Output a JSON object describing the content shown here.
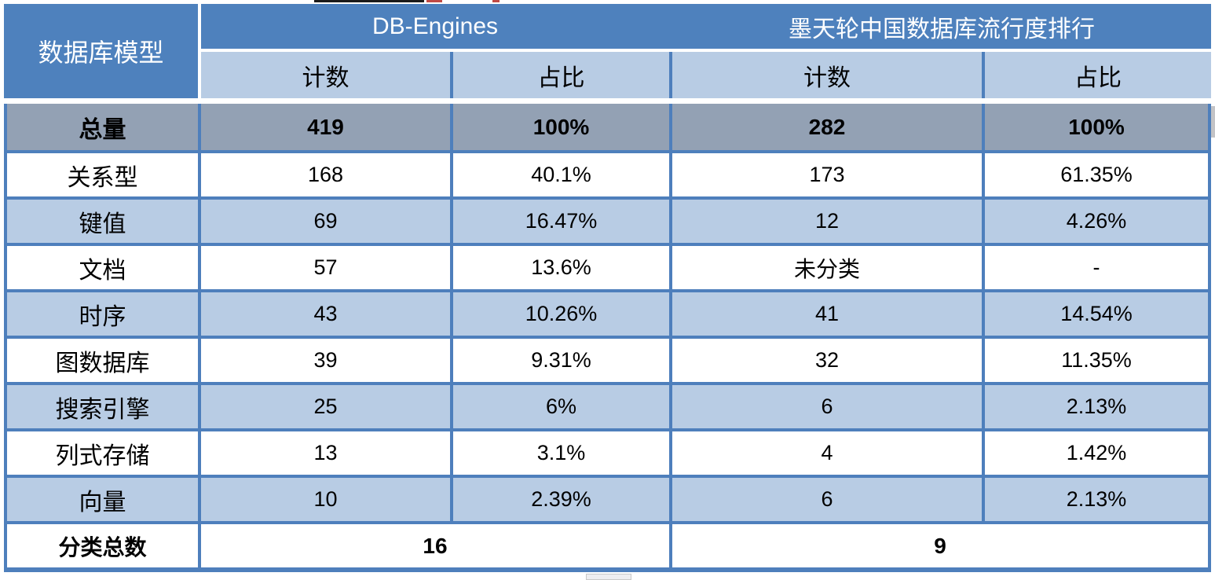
{
  "table": {
    "corner_header": "数据库模型",
    "group_headers": [
      {
        "label": "DB-Engines"
      },
      {
        "label": "墨天轮中国数据库流行度排行"
      }
    ],
    "sub_headers": [
      "计数",
      "占比",
      "计数",
      "占比"
    ],
    "total_row": {
      "label": "总量",
      "db_count": "419",
      "db_share": "100%",
      "mtl_count": "282",
      "mtl_share": "100%"
    },
    "rows": [
      {
        "label": "关系型",
        "db_count": "168",
        "db_share": "40.1%",
        "mtl_count": "173",
        "mtl_share": "61.35%"
      },
      {
        "label": "键值",
        "db_count": "69",
        "db_share": "16.47%",
        "mtl_count": "12",
        "mtl_share": "4.26%"
      },
      {
        "label": "文档",
        "db_count": "57",
        "db_share": "13.6%",
        "mtl_count": "未分类",
        "mtl_share": "-"
      },
      {
        "label": "时序",
        "db_count": "43",
        "db_share": "10.26%",
        "mtl_count": "41",
        "mtl_share": "14.54%"
      },
      {
        "label": "图数据库",
        "db_count": "39",
        "db_share": "9.31%",
        "mtl_count": "32",
        "mtl_share": "11.35%"
      },
      {
        "label": "搜索引擎",
        "db_count": "25",
        "db_share": "6%",
        "mtl_count": "6",
        "mtl_share": "2.13%"
      },
      {
        "label": "列式存储",
        "db_count": "13",
        "db_share": "3.1%",
        "mtl_count": "4",
        "mtl_share": "1.42%"
      },
      {
        "label": "向量",
        "db_count": "10",
        "db_share": "2.39%",
        "mtl_count": "6",
        "mtl_share": "2.13%"
      }
    ],
    "footer_row": {
      "label": "分类总数",
      "db_total": "16",
      "mtl_total": "9"
    }
  },
  "colors": {
    "header_blue": "#4E81BD",
    "subheader_light_blue": "#B8CCE4",
    "total_row_gray": "#93A1B4",
    "grid_border_blue": "#4E7FBC",
    "row_alt_blue": "#B8CCE4",
    "row_white": "#FFFFFF"
  },
  "chart_data": {
    "type": "table",
    "title": "数据库模型统计对比：DB-Engines vs 墨天轮中国数据库流行度排行",
    "columns": [
      "数据库模型",
      "DB-Engines 计数",
      "DB-Engines 占比",
      "墨天轮中国数据库流行度排行 计数",
      "墨天轮中国数据库流行度排行 占比"
    ],
    "rows": [
      [
        "总量",
        "419",
        "100%",
        "282",
        "100%"
      ],
      [
        "关系型",
        "168",
        "40.1%",
        "173",
        "61.35%"
      ],
      [
        "键值",
        "69",
        "16.47%",
        "12",
        "4.26%"
      ],
      [
        "文档",
        "57",
        "13.6%",
        "未分类",
        "-"
      ],
      [
        "时序",
        "43",
        "10.26%",
        "41",
        "14.54%"
      ],
      [
        "图数据库",
        "39",
        "9.31%",
        "32",
        "11.35%"
      ],
      [
        "搜索引擎",
        "25",
        "6%",
        "6",
        "2.13%"
      ],
      [
        "列式存储",
        "13",
        "3.1%",
        "4",
        "1.42%"
      ],
      [
        "向量",
        "10",
        "2.39%",
        "6",
        "2.13%"
      ],
      [
        "分类总数",
        "16",
        "",
        "9",
        ""
      ]
    ],
    "layout_hints": {
      "merged_cells": [
        "corner header spans two header rows",
        "group headers span two columns each",
        "footer totals span two columns each"
      ],
      "row_striping": "white / light blue alternating",
      "total_row_style": "gray background, bold",
      "grid": "blue borders"
    }
  }
}
